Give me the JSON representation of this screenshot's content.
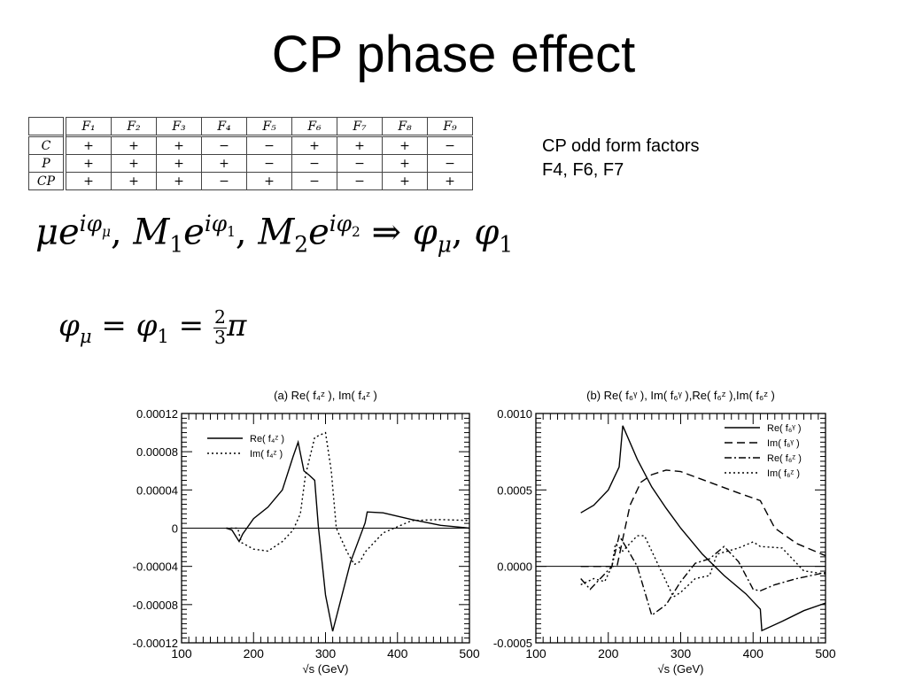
{
  "title": "CP phase effect",
  "table": {
    "corner": "",
    "columns": [
      "F₁",
      "F₂",
      "F₃",
      "F₄",
      "F₅",
      "F₆",
      "F₇",
      "F₈",
      "F₉"
    ],
    "rows": [
      {
        "label": "C",
        "values": [
          "+",
          "+",
          "+",
          "−",
          "−",
          "+",
          "+",
          "+",
          "−"
        ]
      },
      {
        "label": "P",
        "values": [
          "+",
          "+",
          "+",
          "+",
          "−",
          "−",
          "−",
          "+",
          "−"
        ]
      },
      {
        "label": "CP",
        "values": [
          "+",
          "+",
          "+",
          "−",
          "+",
          "−",
          "−",
          "+",
          "+"
        ]
      }
    ]
  },
  "note": {
    "line1": "CP odd form factors",
    "line2": "F4, F6, F7"
  },
  "formula1": {
    "mu": "μ",
    "e": "e",
    "i_phi_mu": "iφ",
    "mu_sub": "μ",
    "sep1": ", ",
    "M1": "M",
    "M1_sub": "1",
    "e2": "e",
    "i_phi_1": "iφ",
    "sub1": "1",
    "sep2": ", ",
    "M2": "M",
    "M2_sub": "2",
    "e3": "e",
    "i_phi_2": "iφ",
    "sub2": "2",
    "arrow": " ⇒ ",
    "phi_mu": "φ",
    "phi_mu_sub": "μ",
    "sep3": ", ",
    "phi_1": "φ",
    "phi_1_sub": "1"
  },
  "formula2": {
    "phi": "φ",
    "sub_mu": "μ",
    "eq": " = ",
    "phi2": "φ",
    "sub_1": "1",
    "eq2": " = ",
    "num": "2",
    "den": "3",
    "pi": "π"
  },
  "chart_data": [
    {
      "type": "line",
      "title": "(a) Re( f₄ᶻ ), Im( f₄ᶻ )",
      "xlabel": "√s (GeV)",
      "xlim": [
        100,
        500
      ],
      "ylim": [
        -0.00012,
        0.00012
      ],
      "xticks": [
        "100",
        "200",
        "300",
        "400",
        "500"
      ],
      "yticks": [
        "0.00012",
        "0.00008",
        "0.00004",
        "0",
        "-0.00004",
        "-0.00008",
        "-0.00012"
      ],
      "legend_position": "top-left",
      "series": [
        {
          "name": "Re( f₄ᶻ )",
          "style": "solid",
          "x": [
            162,
            170,
            175,
            180,
            185,
            200,
            220,
            240,
            255,
            262,
            270,
            278,
            285,
            290,
            300,
            310,
            335,
            355,
            358,
            380,
            420,
            460,
            500
          ],
          "y": [
            0.0,
            -2e-06,
            -8e-06,
            -1.4e-05,
            -6e-06,
            1e-05,
            2.2e-05,
            4e-05,
            7.5e-05,
            9e-05,
            6e-05,
            5.5e-05,
            5e-05,
            2e-06,
            -7e-05,
            -0.000108,
            -3.5e-05,
            5.5e-06,
            1.7e-05,
            1.6e-05,
            9e-06,
            3e-06,
            0.0
          ]
        },
        {
          "name": "Im( f₄ᶻ )",
          "style": "dotted",
          "x": [
            162,
            178,
            183,
            200,
            220,
            240,
            255,
            265,
            272,
            285,
            300,
            308,
            315,
            330,
            340,
            348,
            355,
            380,
            420,
            460,
            500
          ],
          "y": [
            0.0,
            0.0,
            -1.5e-05,
            -2.2e-05,
            -2.4e-05,
            -1.4e-05,
            -2e-06,
            1.5e-05,
            5.5e-05,
            9.5e-05,
            0.0001,
            6e-05,
            0.0,
            -2.5e-05,
            -3.8e-05,
            -3.5e-05,
            -2.5e-05,
            -5e-06,
            8e-06,
            9e-06,
            8e-06
          ]
        }
      ]
    },
    {
      "type": "line",
      "title": "(b) Re( f₆ᵞ ), Im( f₆ᵞ ),Re( f₆ᶻ ),Im( f₆ᶻ )",
      "xlabel": "√s (GeV)",
      "xlim": [
        100,
        500
      ],
      "ylim": [
        -0.0005,
        0.001
      ],
      "xticks": [
        "100",
        "200",
        "300",
        "400",
        "500"
      ],
      "yticks": [
        "0.0010",
        "0.0005",
        "0.0000",
        "-0.0005"
      ],
      "legend_position": "top-right",
      "series": [
        {
          "name": "Re( f₆ᵞ )",
          "style": "solid",
          "x": [
            162,
            180,
            200,
            215,
            220,
            240,
            260,
            280,
            300,
            330,
            360,
            390,
            410,
            412,
            440,
            470,
            500
          ],
          "y": [
            0.00035,
            0.0004,
            0.0005,
            0.00065,
            0.00092,
            0.0007,
            0.00052,
            0.00038,
            0.00025,
            8e-05,
            -6e-05,
            -0.00018,
            -0.00028,
            -0.00042,
            -0.00036,
            -0.00029,
            -0.00024
          ]
        },
        {
          "name": "Im( f₆ᵞ )",
          "style": "dashed",
          "x": [
            162,
            200,
            212,
            220,
            230,
            245,
            260,
            280,
            300,
            340,
            380,
            410,
            430,
            460,
            500
          ],
          "y": [
            0.0,
            0.0,
            0.0,
            0.00018,
            0.0004,
            0.00055,
            0.0006,
            0.00063,
            0.00062,
            0.00055,
            0.00048,
            0.00043,
            0.00025,
            0.00015,
            7e-05
          ]
        },
        {
          "name": "Re( f₆ᶻ )",
          "style": "dashdot",
          "x": [
            162,
            175,
            185,
            205,
            215,
            228,
            240,
            260,
            280,
            300,
            320,
            340,
            360,
            380,
            400,
            410,
            430,
            460,
            500
          ],
          "y": [
            -8e-05,
            -0.00015,
            -0.0001,
            0.0,
            0.0002,
            0.0001,
            0.0,
            -0.00032,
            -0.00025,
            -0.0001,
            2e-05,
            5e-05,
            0.00013,
            3e-05,
            -0.00015,
            -0.00016,
            -0.00012,
            -8e-05,
            -4e-05
          ]
        },
        {
          "name": "Im( f₆ᶻ )",
          "style": "dotted",
          "x": [
            162,
            180,
            195,
            205,
            210,
            220,
            240,
            250,
            270,
            290,
            300,
            320,
            340,
            350,
            380,
            400,
            410,
            440,
            470,
            500
          ],
          "y": [
            -0.00012,
            -8e-05,
            -0.0001,
            0.0,
            0.00015,
            0.0001,
            0.0002,
            0.0002,
            0.0,
            -0.0002,
            -0.00017,
            -8e-05,
            -6e-05,
            8e-05,
            0.00012,
            0.00016,
            0.00013,
            0.00012,
            -3e-05,
            -5e-05
          ]
        }
      ]
    }
  ]
}
